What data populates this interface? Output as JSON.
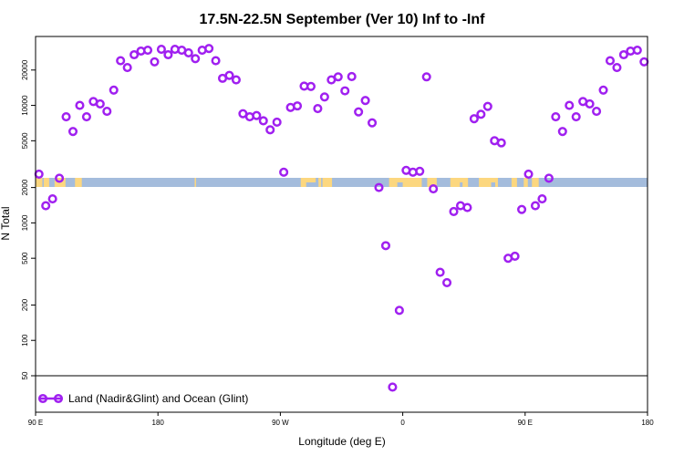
{
  "chart_data": {
    "type": "scatter",
    "title": "17.5N-22.5N September (Ver 10)   Inf to -Inf",
    "xlabel": "Longitude (deg E)",
    "ylabel": "N Total",
    "y_scale": "log",
    "xlim": [
      90,
      450
    ],
    "ylim": [
      50,
      40000
    ],
    "x_ticks": [
      {
        "value": 90,
        "label": "90 E"
      },
      {
        "value": 180,
        "label": "180"
      },
      {
        "value": 270,
        "label": "90 W"
      },
      {
        "value": 360,
        "label": "0"
      },
      {
        "value": 450,
        "label": "90 E"
      },
      {
        "value": 540,
        "label": "180"
      }
    ],
    "y_ticks": [
      {
        "value": 50,
        "label": "50"
      },
      {
        "value": 100,
        "label": "100"
      },
      {
        "value": 200,
        "label": "200"
      },
      {
        "value": 500,
        "label": "500"
      },
      {
        "value": 1000,
        "label": "1000"
      },
      {
        "value": 2000,
        "label": "2000"
      },
      {
        "value": 5000,
        "label": "5000"
      },
      {
        "value": 10000,
        "label": "10000"
      },
      {
        "value": 20000,
        "label": "20000"
      }
    ],
    "legend": {
      "label": "Land (Nadir&Glint) and Ocean (Glint)",
      "placement": "bottom-left"
    },
    "colors": {
      "series": "#a020f0",
      "ocean": "#a4bcdc",
      "land": "#fcd77f"
    },
    "series": [
      {
        "x": [
          92.5,
          97.5,
          102.5,
          107.5,
          112.5,
          117.5,
          122.5,
          127.5,
          132.5,
          137.5,
          142.5,
          147.5,
          152.5,
          157.5,
          162.5,
          167.5,
          172.5,
          177.5,
          182.5,
          187.5,
          192.5,
          197.5,
          202.5,
          207.5,
          212.5,
          217.5,
          222.5,
          227.5,
          232.5,
          237.5,
          242.5,
          247.5,
          252.5,
          257.5,
          262.5,
          267.5,
          272.5,
          277.5,
          282.5,
          287.5,
          292.5,
          297.5,
          302.5,
          307.5,
          312.5,
          317.5,
          322.5,
          327.5,
          332.5,
          337.5,
          342.5,
          347.5,
          352.5,
          357.5,
          362.5,
          367.5,
          372.5,
          377.5,
          382.5,
          387.5,
          392.5,
          397.5,
          402.5,
          407.5,
          412.5,
          417.5,
          422.5,
          427.5,
          432.5,
          437.5,
          442.5,
          447.5
        ],
        "y": [
          2600,
          1400,
          1600,
          2400,
          8000,
          6000,
          10000,
          8000,
          10800,
          10300,
          8900,
          13500,
          24000,
          21000,
          27000,
          29000,
          29500,
          23500,
          30000,
          27000,
          30000,
          29500,
          28000,
          25000,
          29500,
          30500,
          24000,
          17000,
          18000,
          16500,
          8500,
          8000,
          8200,
          7400,
          6200,
          7200,
          2700,
          9600,
          9900,
          14600,
          14500,
          9400,
          11800,
          16500,
          17500,
          13300,
          17600,
          8800,
          11000,
          7100,
          2000,
          640,
          40,
          180,
          2800,
          2700,
          2750,
          17500,
          1950,
          380,
          310,
          1250,
          1400,
          1350,
          7700,
          8400,
          9800,
          5000,
          4800,
          500,
          520,
          1300
        ],
        "repeat_x": [
          452.5,
          457.5,
          462.5,
          467.5,
          472.5,
          477.5,
          482.5,
          487.5,
          492.5,
          497.5,
          502.5,
          507.5,
          512.5,
          517.5,
          522.5,
          527.5,
          532.5,
          537.5
        ],
        "repeat_y": [
          2600,
          1400,
          1600,
          2400,
          8000,
          6000,
          10000,
          8000,
          10800,
          10300,
          8900,
          13500,
          24000,
          21000,
          27000,
          29000,
          29500,
          23500
        ]
      }
    ]
  }
}
